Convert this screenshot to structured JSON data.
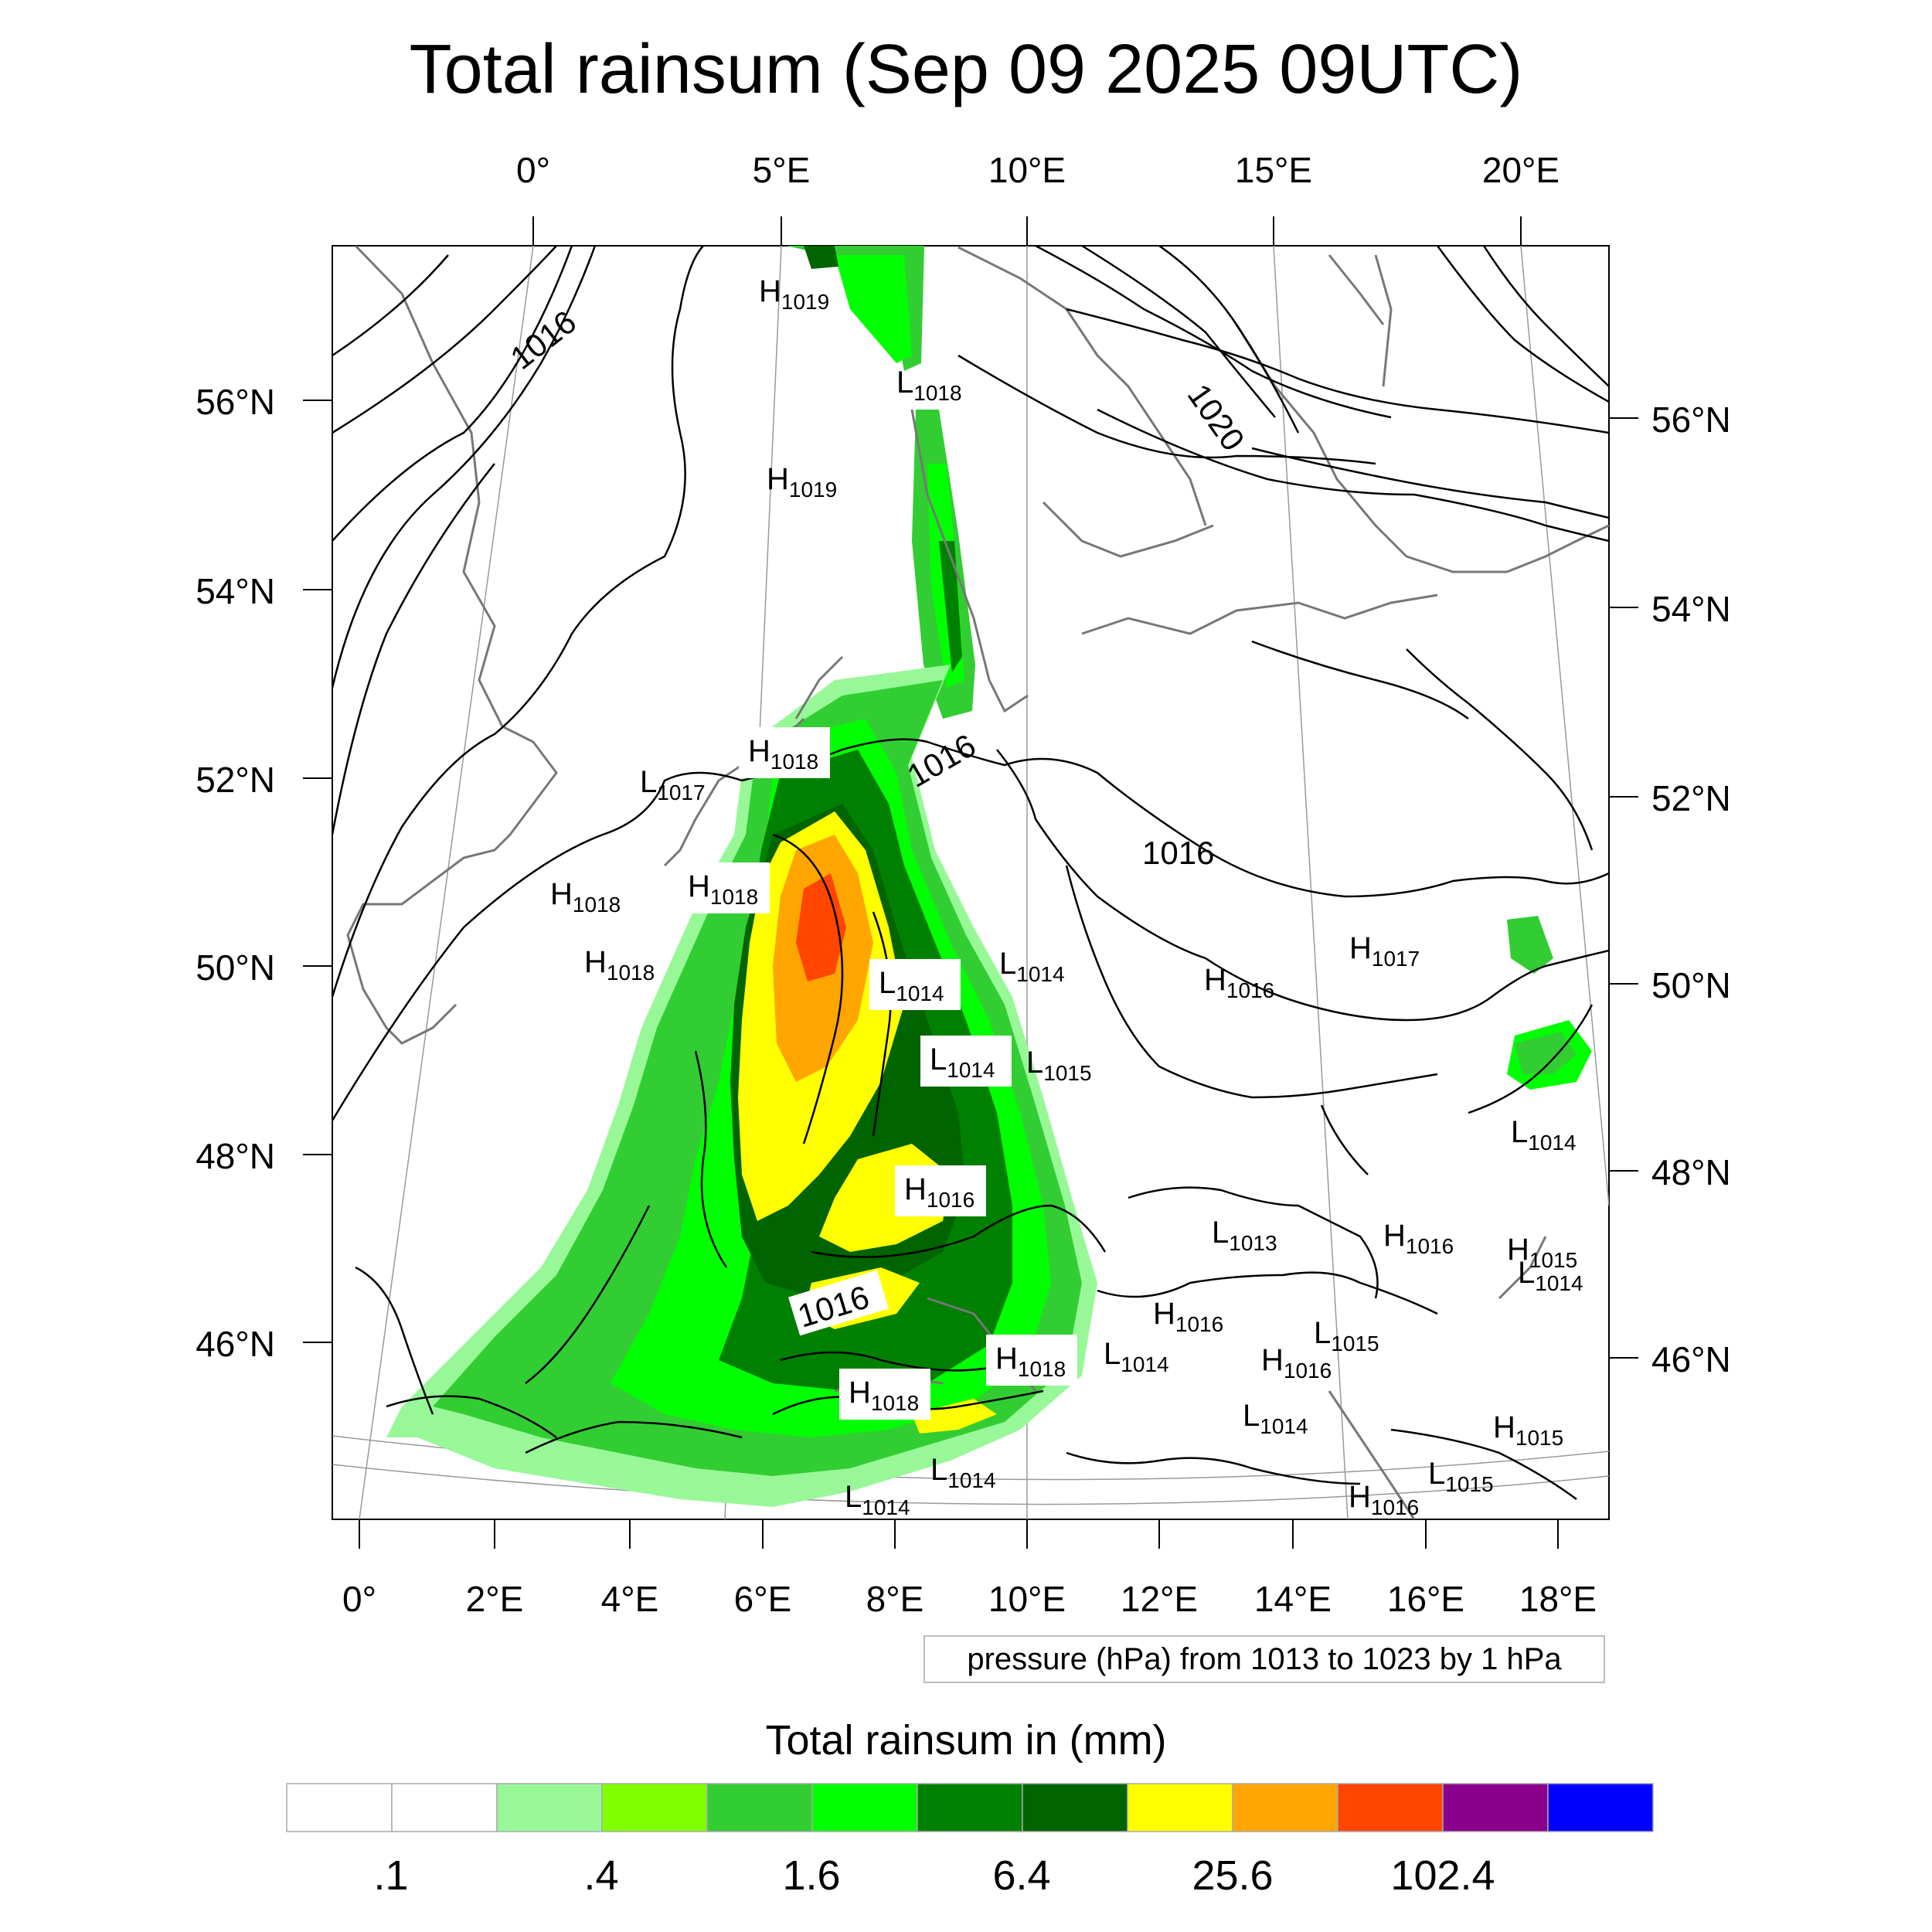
{
  "title": "Total rainsum (Sep 09 2025 09UTC)",
  "axes": {
    "top_lon_labels": [
      "0°",
      "5°E",
      "10°E",
      "15°E",
      "20°E"
    ],
    "bottom_lon_labels": [
      "0°",
      "2°E",
      "4°E",
      "6°E",
      "8°E",
      "10°E",
      "12°E",
      "14°E",
      "16°E",
      "18°E"
    ],
    "left_lat_labels": [
      "56°N",
      "54°N",
      "52°N",
      "50°N",
      "48°N",
      "46°N"
    ],
    "right_lat_labels": [
      "56°N",
      "54°N",
      "52°N",
      "50°N",
      "48°N",
      "46°N"
    ]
  },
  "pressure_note": "pressure (hPa) from 1013 to 1023 by 1 hPa",
  "colorbar": {
    "title": "Total rainsum in (mm)",
    "labels": [
      ".1",
      ".4",
      "1.6",
      "6.4",
      "25.6",
      "102.4"
    ],
    "colors": [
      "#ffffff",
      "#ffffff",
      "#98f898",
      "#80ff00",
      "#32cd32",
      "#00ff00",
      "#008000",
      "#006400",
      "#ffff00",
      "#ffa500",
      "#ff4500",
      "#8b008b",
      "#0000ff"
    ]
  },
  "pressure_centers": [
    {
      "type": "H",
      "value": "1019"
    },
    {
      "type": "L",
      "value": "1018"
    },
    {
      "type": "H",
      "value": "1019"
    },
    {
      "type": "H",
      "value": "1018"
    },
    {
      "type": "L",
      "value": "1017"
    },
    {
      "type": "H",
      "value": "1018"
    },
    {
      "type": "H",
      "value": "1018"
    },
    {
      "type": "H",
      "value": "1018"
    },
    {
      "type": "L",
      "value": "1014"
    },
    {
      "type": "L",
      "value": "1014"
    },
    {
      "type": "L",
      "value": "1014"
    },
    {
      "type": "L",
      "value": "1015"
    },
    {
      "type": "H",
      "value": "1016"
    },
    {
      "type": "H",
      "value": "1017"
    },
    {
      "type": "H",
      "value": "1016"
    },
    {
      "type": "L",
      "value": "1013"
    },
    {
      "type": "H",
      "value": "1016"
    },
    {
      "type": "H",
      "value": "1015"
    },
    {
      "type": "H",
      "value": "1016"
    },
    {
      "type": "L",
      "value": "1015"
    },
    {
      "type": "H",
      "value": "1018"
    },
    {
      "type": "L",
      "value": "1014"
    },
    {
      "type": "H",
      "value": "1016"
    },
    {
      "type": "H",
      "value": "1018"
    },
    {
      "type": "L",
      "value": "1014"
    },
    {
      "type": "H",
      "value": "1015"
    },
    {
      "type": "L",
      "value": "1014"
    },
    {
      "type": "L",
      "value": "1015"
    },
    {
      "type": "L",
      "value": "1014"
    },
    {
      "type": "H",
      "value": "1016"
    },
    {
      "type": "L",
      "value": "1014"
    },
    {
      "type": "L",
      "value": "1014"
    }
  ],
  "isobar_labels": [
    "1016",
    "1020",
    "1016",
    "1016",
    "1016"
  ]
}
